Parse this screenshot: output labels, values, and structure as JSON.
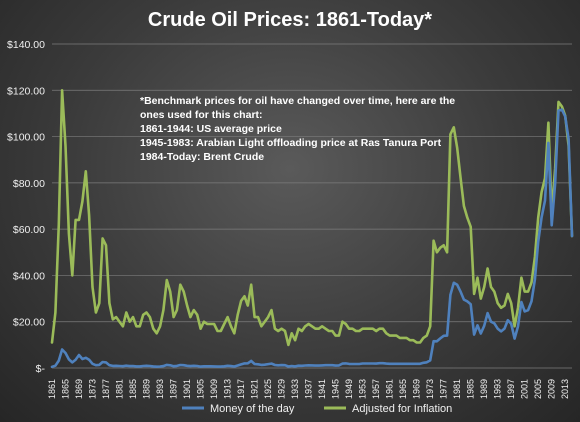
{
  "chart_data": {
    "type": "line",
    "title": "Crude Oil Prices: 1861-Today*",
    "ylim": [
      0,
      140
    ],
    "xlim": [
      1861,
      2015
    ],
    "y_ticks": [
      "$-",
      "$20.00",
      "$40.00",
      "$60.00",
      "$80.00",
      "$100.00",
      "$120.00",
      "$140.00"
    ],
    "x_ticks": [
      "1861",
      "1865",
      "1869",
      "1873",
      "1877",
      "1881",
      "1885",
      "1889",
      "1893",
      "1897",
      "1901",
      "1905",
      "1909",
      "1913",
      "1917",
      "1921",
      "1925",
      "1929",
      "1933",
      "1937",
      "1941",
      "1945",
      "1949",
      "1953",
      "1957",
      "1961",
      "1965",
      "1969",
      "1973",
      "1977",
      "1981",
      "1985",
      "1989",
      "1993",
      "1997",
      "2001",
      "2005",
      "2009",
      "2013"
    ],
    "grid": true,
    "legend_position": "bottom",
    "annotation": [
      "*Benchmark prices for oil have changed over time, here are the",
      "ones used for this chart:",
      "1861-1944:  US average price",
      "1945-1983: Arabian Light offloading price at Ras Tanura Port",
      "1984-Today: Brent Crude"
    ],
    "series": [
      {
        "name": "Money of the day",
        "color": "#4f81bd",
        "points": [
          [
            1861,
            0.5
          ],
          [
            1862,
            1.0
          ],
          [
            1863,
            3.2
          ],
          [
            1864,
            8.0
          ],
          [
            1865,
            6.5
          ],
          [
            1866,
            3.7
          ],
          [
            1867,
            2.4
          ],
          [
            1868,
            3.6
          ],
          [
            1869,
            5.6
          ],
          [
            1870,
            3.9
          ],
          [
            1871,
            4.4
          ],
          [
            1872,
            3.6
          ],
          [
            1873,
            1.8
          ],
          [
            1874,
            1.2
          ],
          [
            1875,
            1.35
          ],
          [
            1876,
            2.6
          ],
          [
            1877,
            2.4
          ],
          [
            1878,
            1.2
          ],
          [
            1879,
            0.9
          ],
          [
            1880,
            0.95
          ],
          [
            1881,
            0.86
          ],
          [
            1882,
            0.78
          ],
          [
            1883,
            1.0
          ],
          [
            1884,
            0.84
          ],
          [
            1885,
            0.88
          ],
          [
            1886,
            0.71
          ],
          [
            1887,
            0.67
          ],
          [
            1888,
            0.88
          ],
          [
            1889,
            0.94
          ],
          [
            1890,
            0.87
          ],
          [
            1891,
            0.67
          ],
          [
            1892,
            0.56
          ],
          [
            1893,
            0.64
          ],
          [
            1894,
            0.84
          ],
          [
            1895,
            1.36
          ],
          [
            1896,
            1.18
          ],
          [
            1897,
            0.79
          ],
          [
            1898,
            0.91
          ],
          [
            1899,
            1.29
          ],
          [
            1900,
            1.19
          ],
          [
            1901,
            0.96
          ],
          [
            1902,
            0.8
          ],
          [
            1903,
            0.94
          ],
          [
            1904,
            0.86
          ],
          [
            1905,
            0.62
          ],
          [
            1906,
            0.73
          ],
          [
            1907,
            0.72
          ],
          [
            1908,
            0.72
          ],
          [
            1909,
            0.7
          ],
          [
            1910,
            0.61
          ],
          [
            1911,
            0.61
          ],
          [
            1912,
            0.74
          ],
          [
            1913,
            0.95
          ],
          [
            1914,
            0.81
          ],
          [
            1915,
            0.64
          ],
          [
            1916,
            1.1
          ],
          [
            1917,
            1.56
          ],
          [
            1918,
            1.98
          ],
          [
            1919,
            2.01
          ],
          [
            1920,
            3.07
          ],
          [
            1921,
            1.73
          ],
          [
            1922,
            1.61
          ],
          [
            1923,
            1.34
          ],
          [
            1924,
            1.43
          ],
          [
            1925,
            1.68
          ],
          [
            1926,
            1.88
          ],
          [
            1927,
            1.3
          ],
          [
            1928,
            1.17
          ],
          [
            1929,
            1.27
          ],
          [
            1930,
            1.19
          ],
          [
            1931,
            0.65
          ],
          [
            1932,
            0.87
          ],
          [
            1933,
            0.67
          ],
          [
            1934,
            1.0
          ],
          [
            1935,
            0.97
          ],
          [
            1936,
            1.09
          ],
          [
            1937,
            1.18
          ],
          [
            1938,
            1.13
          ],
          [
            1939,
            1.02
          ],
          [
            1940,
            1.02
          ],
          [
            1941,
            1.14
          ],
          [
            1942,
            1.19
          ],
          [
            1943,
            1.2
          ],
          [
            1944,
            1.21
          ],
          [
            1945,
            1.05
          ],
          [
            1946,
            1.12
          ],
          [
            1947,
            1.9
          ],
          [
            1948,
            1.99
          ],
          [
            1949,
            1.78
          ],
          [
            1950,
            1.71
          ],
          [
            1951,
            1.71
          ],
          [
            1952,
            1.71
          ],
          [
            1953,
            1.93
          ],
          [
            1954,
            1.93
          ],
          [
            1955,
            1.93
          ],
          [
            1956,
            1.93
          ],
          [
            1957,
            1.9
          ],
          [
            1958,
            2.08
          ],
          [
            1959,
            2.08
          ],
          [
            1960,
            1.9
          ],
          [
            1961,
            1.8
          ],
          [
            1962,
            1.8
          ],
          [
            1963,
            1.8
          ],
          [
            1964,
            1.8
          ],
          [
            1965,
            1.8
          ],
          [
            1966,
            1.8
          ],
          [
            1967,
            1.8
          ],
          [
            1968,
            1.8
          ],
          [
            1969,
            1.8
          ],
          [
            1970,
            1.8
          ],
          [
            1971,
            2.24
          ],
          [
            1972,
            2.48
          ],
          [
            1973,
            3.29
          ],
          [
            1974,
            11.58
          ],
          [
            1975,
            11.53
          ],
          [
            1976,
            12.8
          ],
          [
            1977,
            13.92
          ],
          [
            1978,
            14.02
          ],
          [
            1979,
            31.61
          ],
          [
            1980,
            36.83
          ],
          [
            1981,
            35.93
          ],
          [
            1982,
            32.97
          ],
          [
            1983,
            29.55
          ],
          [
            1984,
            28.78
          ],
          [
            1985,
            27.56
          ],
          [
            1986,
            14.43
          ],
          [
            1987,
            18.44
          ],
          [
            1988,
            14.92
          ],
          [
            1989,
            18.23
          ],
          [
            1990,
            23.73
          ],
          [
            1991,
            20.0
          ],
          [
            1992,
            19.32
          ],
          [
            1993,
            16.97
          ],
          [
            1994,
            15.82
          ],
          [
            1995,
            17.02
          ],
          [
            1996,
            20.67
          ],
          [
            1997,
            19.09
          ],
          [
            1998,
            12.72
          ],
          [
            1999,
            17.97
          ],
          [
            2000,
            28.5
          ],
          [
            2001,
            24.44
          ],
          [
            2002,
            25.02
          ],
          [
            2003,
            28.83
          ],
          [
            2004,
            38.27
          ],
          [
            2005,
            54.52
          ],
          [
            2006,
            65.14
          ],
          [
            2007,
            72.39
          ],
          [
            2008,
            97.26
          ],
          [
            2009,
            61.67
          ],
          [
            2010,
            79.5
          ],
          [
            2011,
            111.26
          ],
          [
            2012,
            111.67
          ],
          [
            2013,
            108.66
          ],
          [
            2014,
            98.95
          ],
          [
            2015,
            57.0
          ]
        ]
      },
      {
        "name": "Adjusted for Inflation",
        "color": "#9bbb59",
        "points": [
          [
            1861,
            11
          ],
          [
            1862,
            24
          ],
          [
            1863,
            62
          ],
          [
            1864,
            120
          ],
          [
            1865,
            96
          ],
          [
            1866,
            58
          ],
          [
            1867,
            40
          ],
          [
            1868,
            64
          ],
          [
            1869,
            64
          ],
          [
            1870,
            72
          ],
          [
            1871,
            85
          ],
          [
            1872,
            66
          ],
          [
            1873,
            35
          ],
          [
            1874,
            24
          ],
          [
            1875,
            28
          ],
          [
            1876,
            56
          ],
          [
            1877,
            53
          ],
          [
            1878,
            28
          ],
          [
            1879,
            21
          ],
          [
            1880,
            22
          ],
          [
            1881,
            20
          ],
          [
            1882,
            18
          ],
          [
            1883,
            24
          ],
          [
            1884,
            20
          ],
          [
            1885,
            22
          ],
          [
            1886,
            18
          ],
          [
            1887,
            18
          ],
          [
            1888,
            23
          ],
          [
            1889,
            24
          ],
          [
            1890,
            22
          ],
          [
            1891,
            17
          ],
          [
            1892,
            15
          ],
          [
            1893,
            18
          ],
          [
            1894,
            25
          ],
          [
            1895,
            38
          ],
          [
            1896,
            33
          ],
          [
            1897,
            22
          ],
          [
            1898,
            25
          ],
          [
            1899,
            36
          ],
          [
            1900,
            33
          ],
          [
            1901,
            27
          ],
          [
            1902,
            22
          ],
          [
            1903,
            25
          ],
          [
            1904,
            23
          ],
          [
            1905,
            17
          ],
          [
            1906,
            20
          ],
          [
            1907,
            19
          ],
          [
            1908,
            19
          ],
          [
            1909,
            19
          ],
          [
            1910,
            16
          ],
          [
            1911,
            16
          ],
          [
            1912,
            19
          ],
          [
            1913,
            22
          ],
          [
            1914,
            18
          ],
          [
            1915,
            15
          ],
          [
            1916,
            23
          ],
          [
            1917,
            29
          ],
          [
            1918,
            31
          ],
          [
            1919,
            27
          ],
          [
            1920,
            36
          ],
          [
            1921,
            22
          ],
          [
            1922,
            22
          ],
          [
            1923,
            18
          ],
          [
            1924,
            20
          ],
          [
            1925,
            22
          ],
          [
            1926,
            25
          ],
          [
            1927,
            17
          ],
          [
            1928,
            16
          ],
          [
            1929,
            17
          ],
          [
            1930,
            16
          ],
          [
            1931,
            10
          ],
          [
            1932,
            15
          ],
          [
            1933,
            12
          ],
          [
            1934,
            17
          ],
          [
            1935,
            16
          ],
          [
            1936,
            18
          ],
          [
            1937,
            19
          ],
          [
            1938,
            18
          ],
          [
            1939,
            17
          ],
          [
            1940,
            17
          ],
          [
            1941,
            18
          ],
          [
            1942,
            17
          ],
          [
            1943,
            16
          ],
          [
            1944,
            16
          ],
          [
            1945,
            14
          ],
          [
            1946,
            14
          ],
          [
            1947,
            20
          ],
          [
            1948,
            19
          ],
          [
            1949,
            17
          ],
          [
            1950,
            17
          ],
          [
            1951,
            16
          ],
          [
            1952,
            16
          ],
          [
            1953,
            17
          ],
          [
            1954,
            17
          ],
          [
            1955,
            17
          ],
          [
            1956,
            17
          ],
          [
            1957,
            16
          ],
          [
            1958,
            17
          ],
          [
            1959,
            17
          ],
          [
            1960,
            15
          ],
          [
            1961,
            14
          ],
          [
            1962,
            14
          ],
          [
            1963,
            14
          ],
          [
            1964,
            13
          ],
          [
            1965,
            13
          ],
          [
            1966,
            13
          ],
          [
            1967,
            12
          ],
          [
            1968,
            12
          ],
          [
            1969,
            11
          ],
          [
            1970,
            11
          ],
          [
            1971,
            13
          ],
          [
            1972,
            14
          ],
          [
            1973,
            18
          ],
          [
            1974,
            55
          ],
          [
            1975,
            50
          ],
          [
            1976,
            52
          ],
          [
            1977,
            53
          ],
          [
            1978,
            50
          ],
          [
            1979,
            101
          ],
          [
            1980,
            104
          ],
          [
            1981,
            95
          ],
          [
            1982,
            82
          ],
          [
            1983,
            70
          ],
          [
            1984,
            65
          ],
          [
            1985,
            61
          ],
          [
            1986,
            32
          ],
          [
            1987,
            39
          ],
          [
            1988,
            30
          ],
          [
            1989,
            35
          ],
          [
            1990,
            43
          ],
          [
            1991,
            35
          ],
          [
            1992,
            33
          ],
          [
            1993,
            28
          ],
          [
            1994,
            26
          ],
          [
            1995,
            27
          ],
          [
            1996,
            32
          ],
          [
            1997,
            28
          ],
          [
            1998,
            18
          ],
          [
            1999,
            26
          ],
          [
            2000,
            39
          ],
          [
            2001,
            33
          ],
          [
            2002,
            33
          ],
          [
            2003,
            37
          ],
          [
            2004,
            48
          ],
          [
            2005,
            65
          ],
          [
            2006,
            76
          ],
          [
            2007,
            82
          ],
          [
            2008,
            106
          ],
          [
            2009,
            67
          ],
          [
            2010,
            86
          ],
          [
            2011,
            115
          ],
          [
            2012,
            113
          ],
          [
            2013,
            109
          ],
          [
            2014,
            96
          ],
          [
            2015,
            57
          ]
        ]
      }
    ]
  }
}
